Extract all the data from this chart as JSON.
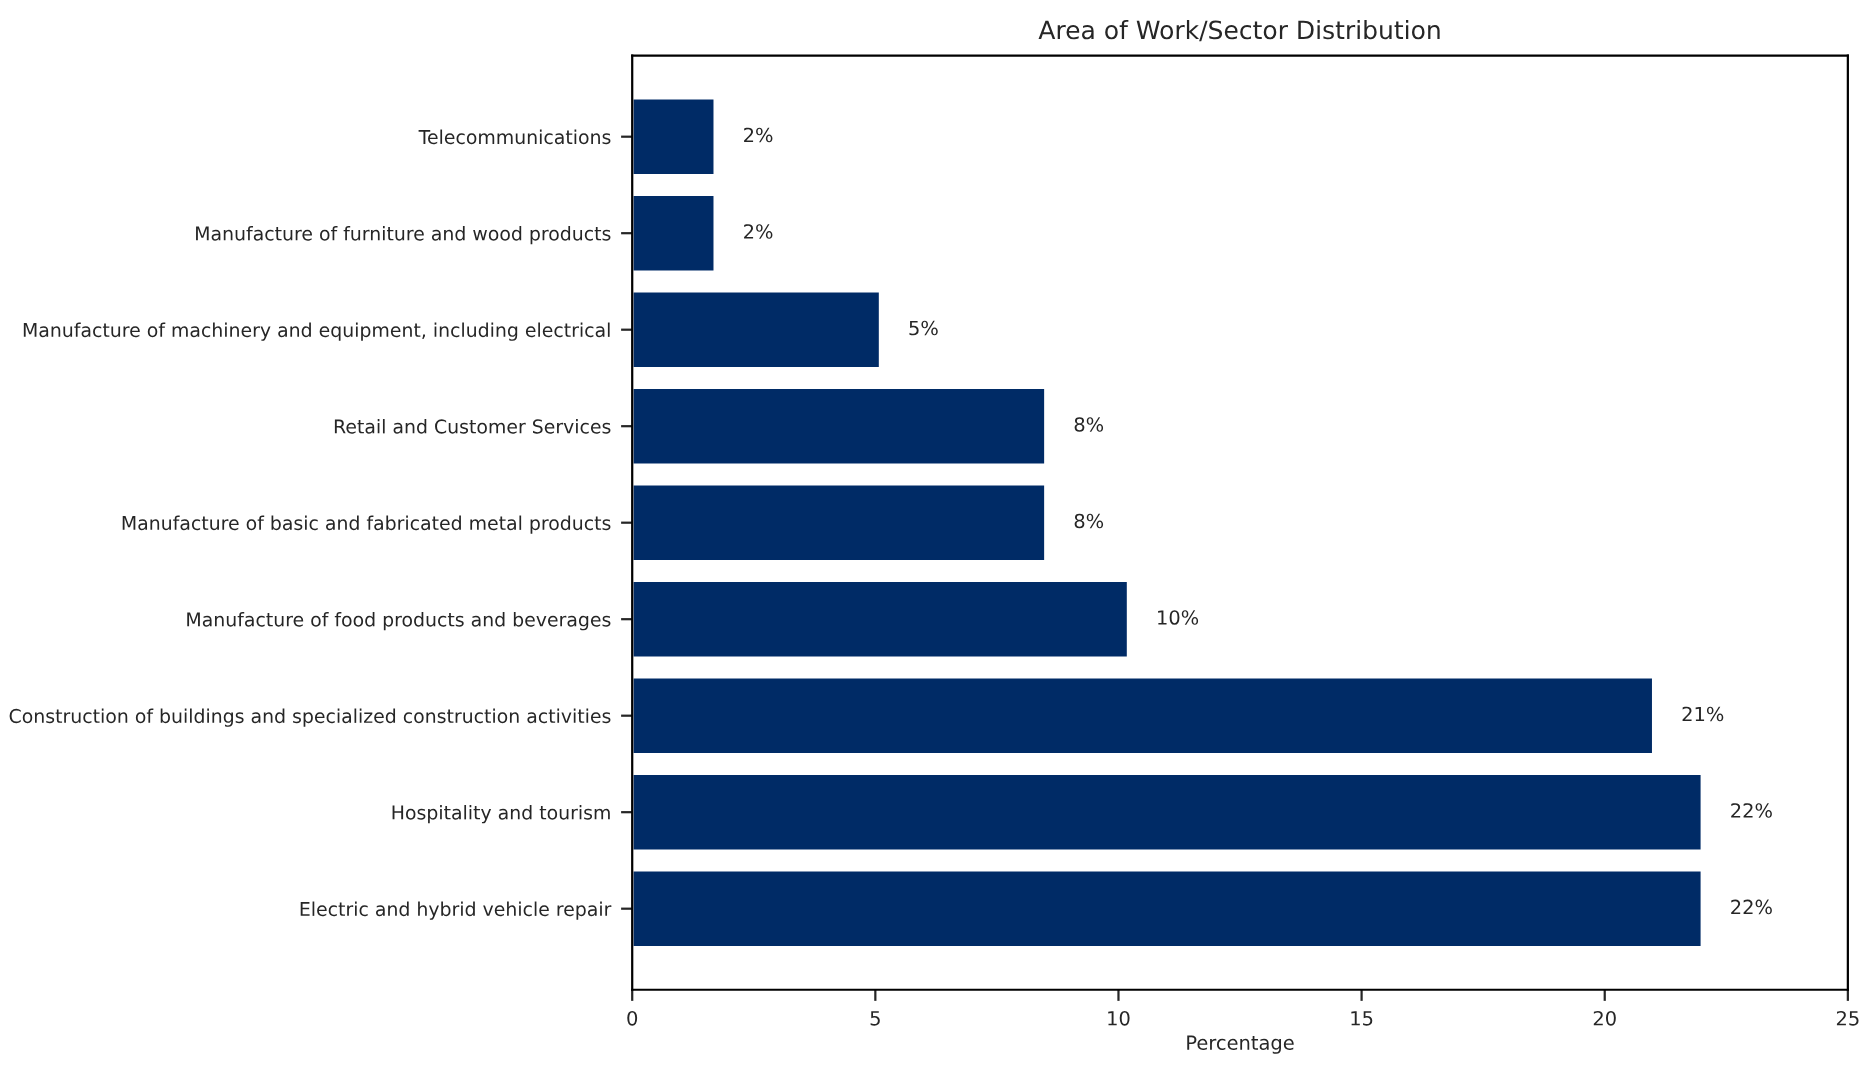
{
  "chart_data": {
    "type": "bar",
    "orientation": "horizontal",
    "title": "Area of Work/Sector Distribution",
    "xlabel": "Percentage",
    "categories": [
      "Telecommunications",
      "Manufacture of furniture and wood products",
      "Manufacture of machinery and equipment, including electrical",
      "Retail and Customer Services",
      "Manufacture of basic and fabricated metal products",
      "Manufacture of food products and beverages",
      "Construction of buildings and specialized construction activities",
      "Hospitality and tourism",
      "Electric and hybrid vehicle repair"
    ],
    "values": [
      1.7,
      1.7,
      5.1,
      8.5,
      8.5,
      10.2,
      21.0,
      22.0,
      22.0
    ],
    "value_labels": [
      "2%",
      "2%",
      "5%",
      "8%",
      "8%",
      "10%",
      "21%",
      "22%",
      "22%"
    ],
    "color": "#002b66",
    "xlim": [
      0,
      25
    ],
    "xticks": [
      0,
      5,
      10,
      15,
      20,
      25
    ],
    "grid": false
  }
}
